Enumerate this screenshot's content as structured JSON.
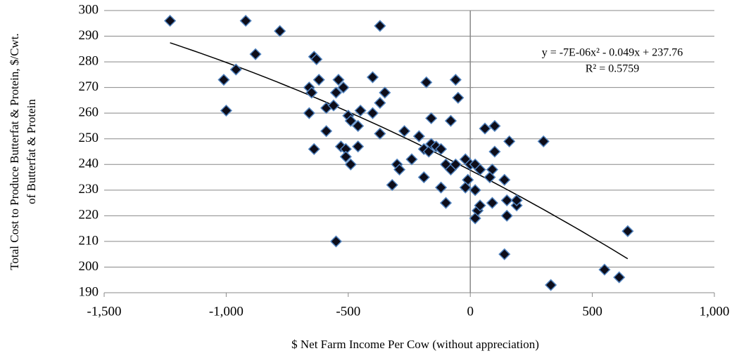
{
  "chart_data": {
    "type": "scatter",
    "xlabel": "$ Net Farm Income Per Cow (without appreciation)",
    "ylabel_lines": [
      "Total Cost to Produce Butterfat & Protein, $/Cwt.",
      "of Butterfat & Protein"
    ],
    "x": [
      -1230,
      -920,
      -780,
      -370,
      -880,
      -960,
      -1010,
      -1000,
      -640,
      -630,
      -660,
      -650,
      -620,
      -540,
      -550,
      -520,
      -400,
      -350,
      -370,
      -590,
      -560,
      -450,
      -400,
      -500,
      -490,
      -460,
      -660,
      -590,
      -640,
      -460,
      -530,
      -510,
      -510,
      -490,
      -370,
      -270,
      -180,
      -160,
      -60,
      -50,
      -80,
      -210,
      -190,
      -170,
      -160,
      -140,
      -120,
      -190,
      -240,
      -300,
      -290,
      -320,
      -120,
      -100,
      -100,
      -80,
      -60,
      -20,
      0,
      -10,
      -20,
      20,
      40,
      20,
      30,
      20,
      40,
      60,
      100,
      160,
      100,
      90,
      80,
      140,
      90,
      150,
      150,
      190,
      190,
      300,
      140,
      330,
      550,
      610,
      645,
      -550
    ],
    "values": [
      296,
      296,
      292,
      294,
      283,
      277,
      273,
      261,
      282,
      281,
      270,
      268,
      273,
      273,
      268,
      270,
      274,
      268,
      264,
      262,
      263,
      261,
      260,
      259,
      257,
      255,
      260,
      253,
      246,
      247,
      247,
      246,
      243,
      240,
      252,
      253,
      272,
      258,
      273,
      266,
      257,
      251,
      246,
      245,
      248,
      247,
      246,
      235,
      242,
      240,
      238,
      232,
      231,
      225,
      240,
      238,
      240,
      242,
      240,
      234,
      231,
      240,
      238,
      230,
      222,
      219,
      224,
      254,
      255,
      249,
      245,
      238,
      235,
      234,
      225,
      226,
      220,
      224,
      226,
      249,
      205,
      193,
      199,
      196,
      214,
      210
    ],
    "marker_fill": "#0d0d1a",
    "marker_edge": "#4f81bd",
    "xlim": [
      -1500,
      1000
    ],
    "xticks": [
      {
        "value": -1500,
        "label": "-1,500"
      },
      {
        "value": -1000,
        "label": "-1,000"
      },
      -500,
      0,
      500,
      {
        "value": 1000,
        "label": "1,000"
      }
    ],
    "ylim": [
      190,
      300
    ],
    "yticks": [
      190,
      200,
      210,
      220,
      230,
      240,
      250,
      260,
      270,
      280,
      290,
      300
    ],
    "grid": true,
    "trendline": {
      "equation": "y = -7E-06x² - 0.049x + 237.76",
      "r2": "R² = 0.5759",
      "coefficients": [
        -7e-06,
        -0.049,
        237.76
      ],
      "xrange": [
        -1230,
        645
      ]
    }
  }
}
